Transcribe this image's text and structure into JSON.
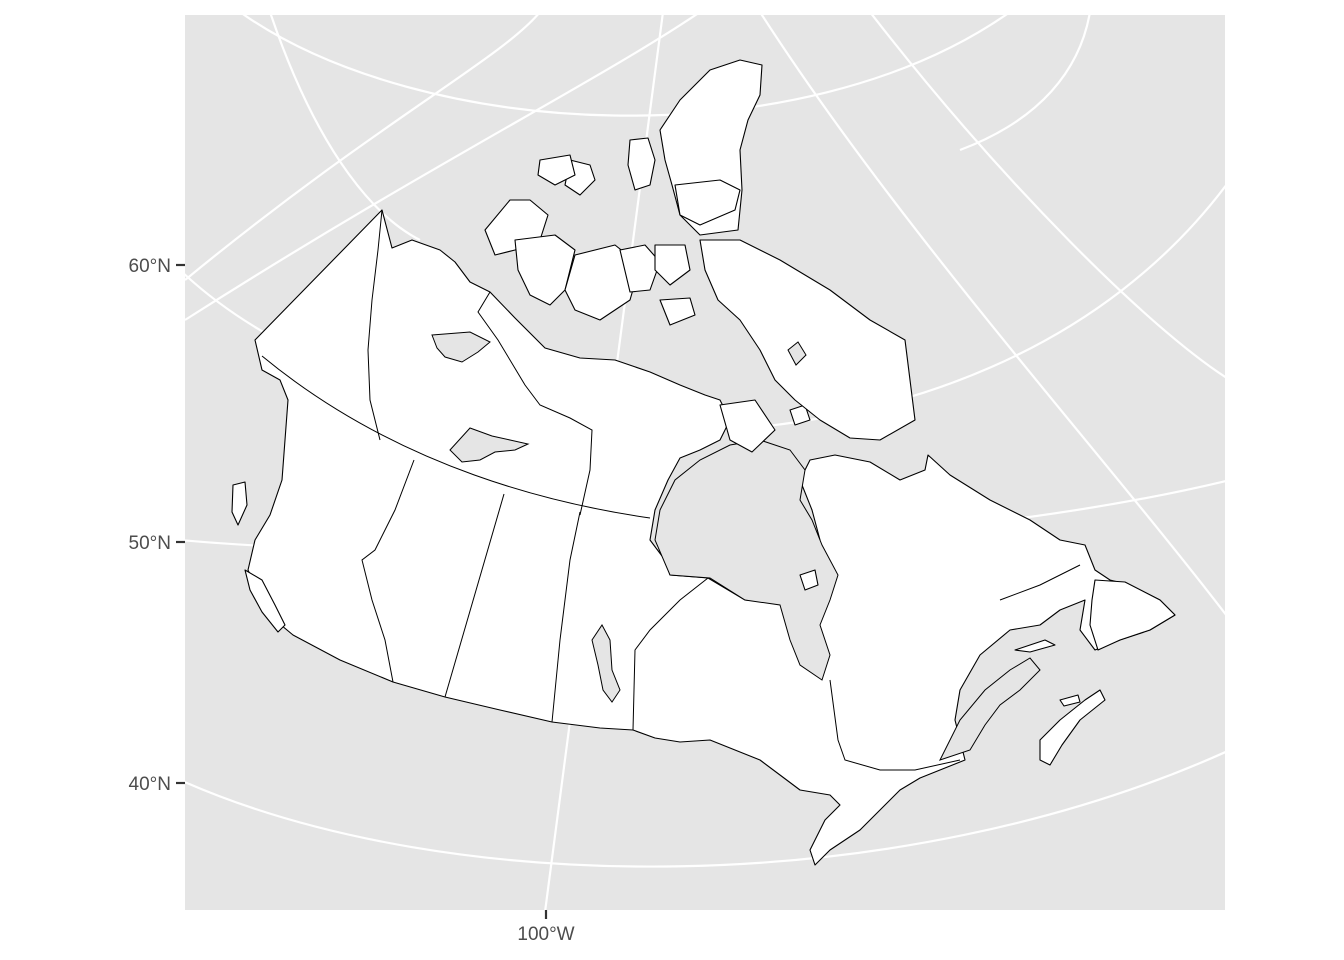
{
  "map": {
    "title": "",
    "panel_background": "#e5e5e5",
    "graticule_color": "#ffffff",
    "land_fill": "#ffffff",
    "outline_color": "#000000",
    "region": "Canada provinces and territories"
  },
  "axes": {
    "y_ticks": [
      {
        "label": "60°N",
        "lat": 60
      },
      {
        "label": "50°N",
        "lat": 50
      },
      {
        "label": "40°N",
        "lat": 40
      }
    ],
    "x_ticks": [
      {
        "label": "100°W",
        "lon": -100
      }
    ]
  }
}
